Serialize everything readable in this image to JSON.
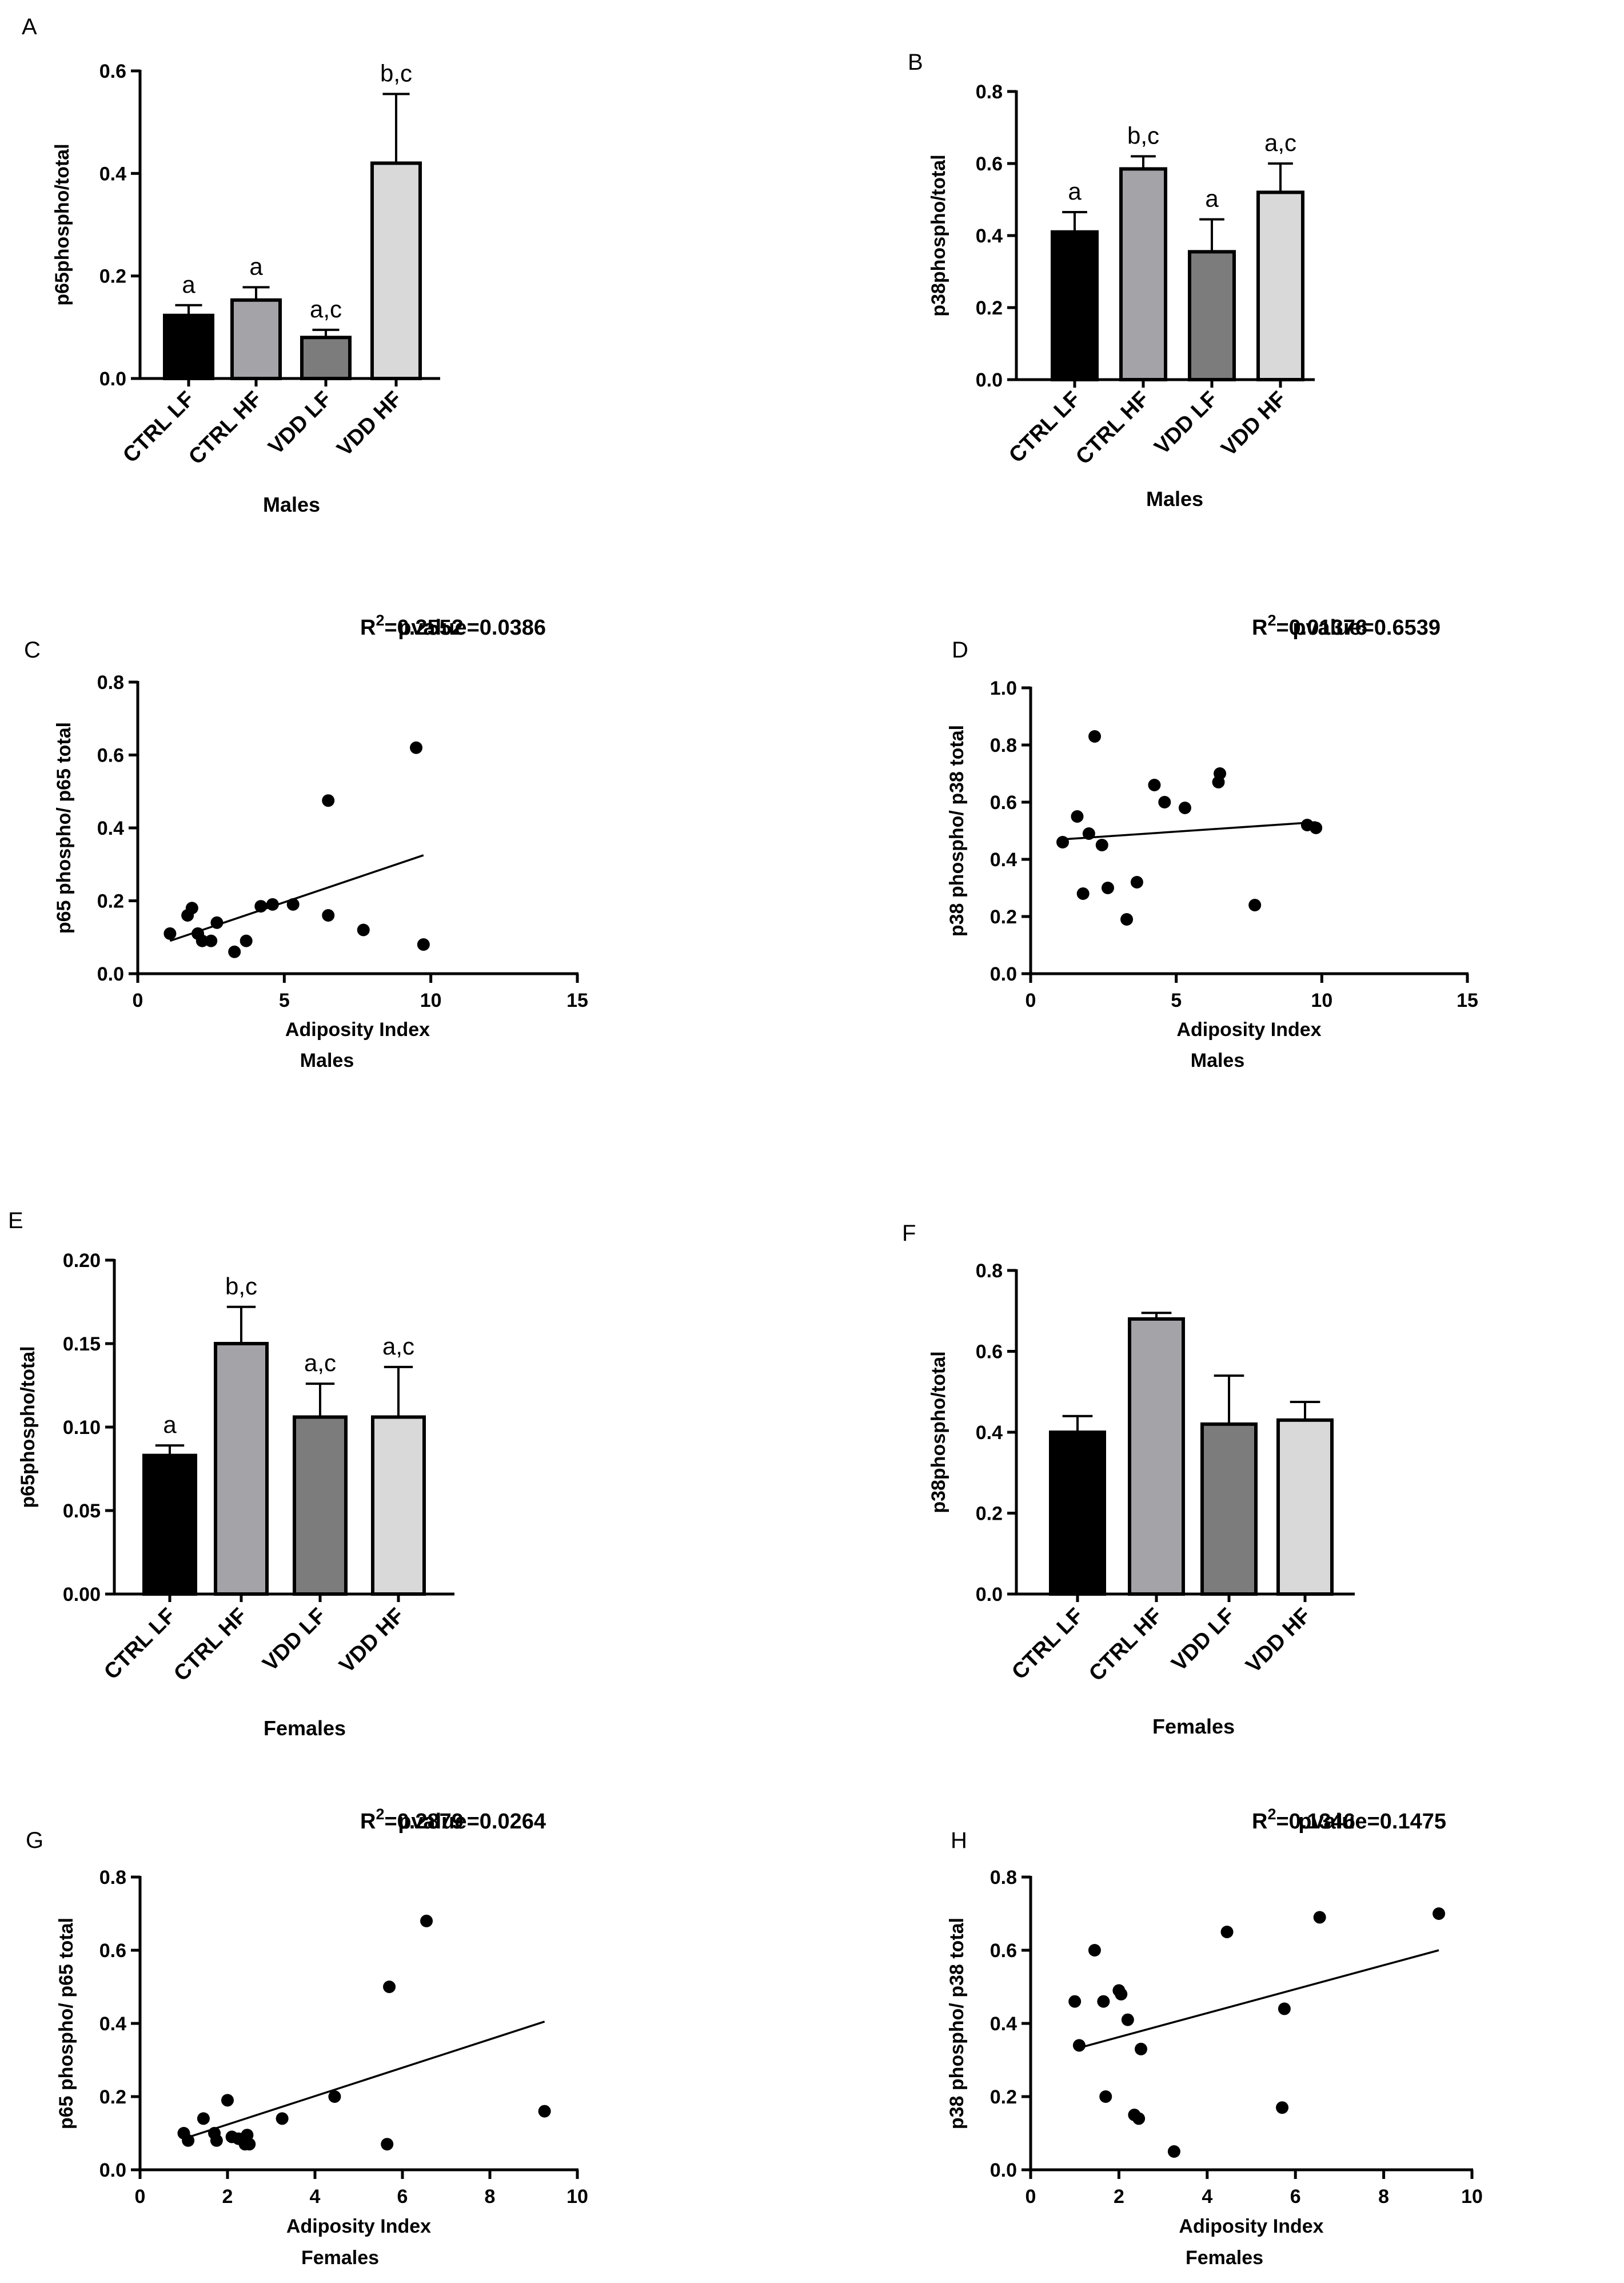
{
  "colors": {
    "CTRL LF": "#000000",
    "CTRL HF": "#a3a3a8",
    "VDD LF": "#7c7c7c",
    "VDD HF": "#d9d9d9"
  },
  "chart_data": [
    {
      "panel": "A",
      "type": "bar",
      "categories": [
        "CTRL LF",
        "CTRL HF",
        "VDD LF",
        "VDD HF"
      ],
      "values": [
        0.123,
        0.153,
        0.08,
        0.42
      ],
      "errors": [
        0.02,
        0.025,
        0.015,
        0.135
      ],
      "sig_labels": [
        "a",
        "a",
        "a,c",
        "b,c"
      ],
      "ylabel": "p65phospho/total",
      "xlabel": "Males",
      "ylim": [
        0,
        0.6
      ],
      "yticks": [
        "0.0",
        "0.2",
        "0.4",
        "0.6"
      ]
    },
    {
      "panel": "B",
      "type": "bar",
      "categories": [
        "CTRL LF",
        "CTRL HF",
        "VDD LF",
        "VDD HF"
      ],
      "values": [
        0.41,
        0.585,
        0.355,
        0.52
      ],
      "errors": [
        0.055,
        0.035,
        0.09,
        0.08
      ],
      "sig_labels": [
        "a",
        "b,c",
        "a",
        "a,c"
      ],
      "ylabel": "p38phospho/total",
      "xlabel": "Males",
      "ylim": [
        0,
        0.8
      ],
      "yticks": [
        "0.0",
        "0.2",
        "0.4",
        "0.6",
        "0.8"
      ]
    },
    {
      "panel": "C",
      "type": "scatter",
      "r2_label": "R",
      "r2_sup": "2",
      "r2_value": "=0.2552",
      "pvalue": "pvalue=0.0386",
      "points": [
        [
          1.1,
          0.11
        ],
        [
          1.7,
          0.16
        ],
        [
          1.85,
          0.18
        ],
        [
          2.05,
          0.11
        ],
        [
          2.2,
          0.09
        ],
        [
          2.5,
          0.09
        ],
        [
          2.7,
          0.14
        ],
        [
          3.3,
          0.06
        ],
        [
          3.7,
          0.09
        ],
        [
          4.2,
          0.185
        ],
        [
          4.6,
          0.19
        ],
        [
          5.3,
          0.19
        ],
        [
          6.5,
          0.16
        ],
        [
          6.5,
          0.475
        ],
        [
          7.7,
          0.12
        ],
        [
          9.5,
          0.62
        ],
        [
          9.75,
          0.08
        ]
      ],
      "fit": [
        [
          1.1,
          0.09
        ],
        [
          9.75,
          0.325
        ]
      ],
      "xlabel": "Adiposity Index",
      "group": "Males",
      "xlim": [
        0,
        15
      ],
      "xticks": [
        "0",
        "5",
        "10",
        "15"
      ],
      "ylim": [
        0,
        0.8
      ],
      "yticks": [
        "0.0",
        "0.2",
        "0.4",
        "0.6",
        "0.8"
      ],
      "ylabel": "p65 phospho/ p65 total"
    },
    {
      "panel": "D",
      "type": "scatter",
      "r2_label": "R",
      "r2_sup": "2",
      "r2_value": "=0.01376",
      "pvalue": "pvalue=0.6539",
      "points": [
        [
          1.1,
          0.46
        ],
        [
          1.6,
          0.55
        ],
        [
          1.8,
          0.28
        ],
        [
          2.0,
          0.49
        ],
        [
          2.2,
          0.83
        ],
        [
          2.45,
          0.45
        ],
        [
          2.65,
          0.3
        ],
        [
          3.3,
          0.19
        ],
        [
          3.65,
          0.32
        ],
        [
          4.25,
          0.66
        ],
        [
          4.6,
          0.6
        ],
        [
          5.3,
          0.58
        ],
        [
          6.45,
          0.67
        ],
        [
          6.5,
          0.7
        ],
        [
          7.7,
          0.24
        ],
        [
          9.5,
          0.52
        ],
        [
          9.8,
          0.51
        ]
      ],
      "fit": [
        [
          1.1,
          0.47
        ],
        [
          9.8,
          0.53
        ]
      ],
      "xlabel": "Adiposity Index",
      "group": "Males",
      "xlim": [
        0,
        15
      ],
      "xticks": [
        "0",
        "5",
        "10",
        "15"
      ],
      "ylim": [
        0,
        1.0
      ],
      "yticks": [
        "0.0",
        "0.2",
        "0.4",
        "0.6",
        "0.8",
        "1.0"
      ],
      "ylabel": "p38 phospho/ p38 total"
    },
    {
      "panel": "E",
      "type": "bar",
      "categories": [
        "CTRL LF",
        "CTRL HF",
        "VDD LF",
        "VDD HF"
      ],
      "values": [
        0.083,
        0.15,
        0.106,
        0.106
      ],
      "errors": [
        0.006,
        0.022,
        0.02,
        0.03
      ],
      "sig_labels": [
        "a",
        "b,c",
        "a,c",
        "a,c"
      ],
      "ylabel": "p65phospho/total",
      "xlabel": "Females",
      "ylim": [
        0,
        0.2
      ],
      "yticks": [
        "0.00",
        "0.05",
        "0.10",
        "0.15",
        "0.20"
      ]
    },
    {
      "panel": "F",
      "type": "bar",
      "categories": [
        "CTRL LF",
        "CTRL HF",
        "VDD LF",
        "VDD HF"
      ],
      "values": [
        0.4,
        0.68,
        0.42,
        0.43
      ],
      "errors": [
        0.04,
        0.015,
        0.12,
        0.045
      ],
      "sig_labels": [
        "",
        "",
        "",
        ""
      ],
      "ylabel": "p38phospho/total",
      "xlabel": "Females",
      "ylim": [
        0,
        0.8
      ],
      "yticks": [
        "0.0",
        "0.2",
        "0.4",
        "0.6",
        "0.8"
      ]
    },
    {
      "panel": "G",
      "type": "scatter",
      "r2_label": "R",
      "r2_sup": "2",
      "r2_value": "=0.2879",
      "pvalue": "pvalue=0.0264",
      "points": [
        [
          1.0,
          0.1
        ],
        [
          1.1,
          0.08
        ],
        [
          1.45,
          0.14
        ],
        [
          1.7,
          0.1
        ],
        [
          1.75,
          0.08
        ],
        [
          2.0,
          0.19
        ],
        [
          2.1,
          0.09
        ],
        [
          2.25,
          0.085
        ],
        [
          2.4,
          0.07
        ],
        [
          2.45,
          0.095
        ],
        [
          2.5,
          0.07
        ],
        [
          3.25,
          0.14
        ],
        [
          4.45,
          0.2
        ],
        [
          5.65,
          0.07
        ],
        [
          5.7,
          0.5
        ],
        [
          6.55,
          0.68
        ],
        [
          9.25,
          0.16
        ]
      ],
      "fit": [
        [
          1.0,
          0.085
        ],
        [
          9.25,
          0.405
        ]
      ],
      "xlabel": "Adiposity Index",
      "group": "Females",
      "xlim": [
        0,
        10
      ],
      "xticks": [
        "0",
        "2",
        "4",
        "6",
        "8",
        "10"
      ],
      "ylim": [
        0,
        0.8
      ],
      "yticks": [
        "0.0",
        "0.2",
        "0.4",
        "0.6",
        "0.8"
      ],
      "ylabel": "p65 phospho/ p65 total"
    },
    {
      "panel": "H",
      "type": "scatter",
      "r2_label": "R",
      "r2_sup": "2",
      "r2_value": "=0.1346",
      "pvalue": "pvalue=0.1475",
      "points": [
        [
          1.0,
          0.46
        ],
        [
          1.1,
          0.34
        ],
        [
          1.45,
          0.6
        ],
        [
          1.65,
          0.46
        ],
        [
          1.7,
          0.2
        ],
        [
          2.0,
          0.49
        ],
        [
          2.05,
          0.48
        ],
        [
          2.2,
          0.41
        ],
        [
          2.35,
          0.15
        ],
        [
          2.45,
          0.14
        ],
        [
          2.5,
          0.33
        ],
        [
          3.25,
          0.05
        ],
        [
          4.45,
          0.65
        ],
        [
          5.7,
          0.17
        ],
        [
          5.75,
          0.44
        ],
        [
          6.55,
          0.69
        ],
        [
          9.25,
          0.7
        ]
      ],
      "fit": [
        [
          1.0,
          0.33
        ],
        [
          9.25,
          0.6
        ]
      ],
      "xlabel": "Adiposity Index",
      "group": "Females",
      "xlim": [
        0,
        10
      ],
      "xticks": [
        "0",
        "2",
        "4",
        "6",
        "8",
        "10"
      ],
      "ylim": [
        0,
        0.8
      ],
      "yticks": [
        "0.0",
        "0.2",
        "0.4",
        "0.6",
        "0.8"
      ],
      "ylabel": "p38 phospho/ p38 total"
    }
  ]
}
